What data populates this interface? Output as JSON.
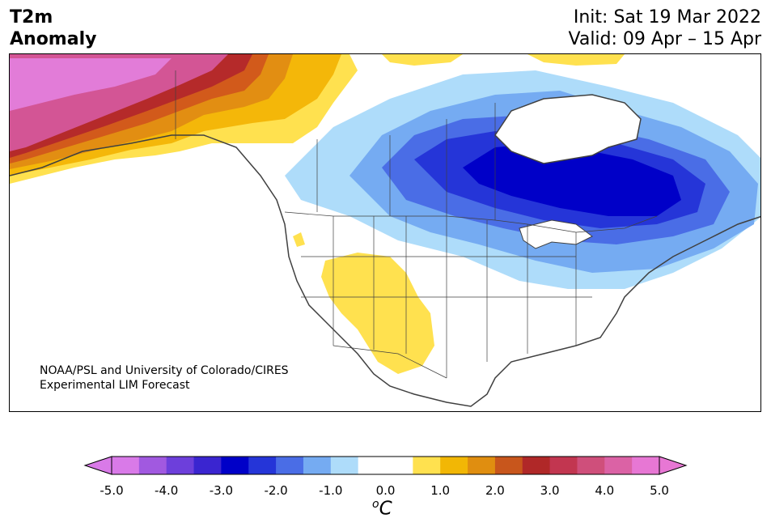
{
  "header": {
    "title_line1": "T2m",
    "title_line2": "Anomaly",
    "init_text": "Init: Sat 19 Mar 2022",
    "valid_text": "Valid: 09 Apr – 15 Apr"
  },
  "credit": {
    "line1": "NOAA/PSL and University of Colorado/CIRES",
    "line2": "Experimental LIM Forecast"
  },
  "colorbar": {
    "tick_labels": [
      "-5.0",
      "-4.0",
      "-3.0",
      "-2.0",
      "-1.0",
      "0.0",
      "1.0",
      "2.0",
      "3.0",
      "4.0",
      "5.0"
    ],
    "unit_base": "C",
    "unit_sup": "o",
    "colors": [
      "#d97ae8",
      "#a159e0",
      "#6d3fdb",
      "#3a25d0",
      "#0000c8",
      "#2535d8",
      "#4a6de6",
      "#75abf2",
      "#aedcfa",
      "#ffffff",
      "#ffffff",
      "#ffe14f",
      "#f2b705",
      "#e08e10",
      "#c8561c",
      "#b02828",
      "#c23650",
      "#cf4f7b",
      "#db62a5",
      "#e777d4"
    ],
    "extend_low_color": "#d97ae8",
    "extend_high_color": "#e777d4"
  },
  "map": {
    "region": "North America",
    "palette": {
      "pink_high": "#e27cd8",
      "magenta": "#d35595",
      "dark_red": "#b52a2a",
      "orange_red": "#d25a1b",
      "orange": "#e28e12",
      "gold": "#f4b709",
      "yellow": "#ffe14f",
      "pale_blue": "#aedcfa",
      "light_blue": "#75abf2",
      "mid_blue": "#4a6de6",
      "blue": "#2535d8",
      "deep_blue": "#0000c8",
      "coast": "#404040"
    }
  }
}
